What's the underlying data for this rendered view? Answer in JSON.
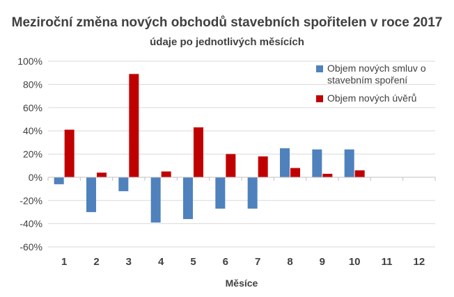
{
  "chart_data": {
    "type": "bar",
    "title": "Meziroční změna nových obchodů stavebních spořitelen v roce 2017",
    "subtitle": "údaje po jednotlivých měsících",
    "xlabel": "Měsíce",
    "ylabel": "",
    "categories": [
      "1",
      "2",
      "3",
      "4",
      "5",
      "6",
      "7",
      "8",
      "9",
      "10",
      "11",
      "12"
    ],
    "series": [
      {
        "name": "Objem nových smluv o stavebním spoření",
        "color": "#4f81bd",
        "values": [
          -6,
          -30,
          -12,
          -39,
          -36,
          -27,
          -27,
          25,
          24,
          24,
          null,
          null
        ]
      },
      {
        "name": "Objem nových úvěrů",
        "color": "#c00000",
        "values": [
          41,
          4,
          89,
          5,
          43,
          20,
          18,
          8,
          3,
          6,
          null,
          null
        ]
      }
    ],
    "ylim": [
      -60,
      100
    ],
    "yticks": [
      -60,
      -40,
      -20,
      0,
      20,
      40,
      60,
      80,
      100
    ],
    "ytick_labels": [
      "-60%",
      "-40%",
      "-20%",
      "0%",
      "20%",
      "40%",
      "60%",
      "80%",
      "100%"
    ],
    "grid": true,
    "legend_position": "top-right"
  }
}
